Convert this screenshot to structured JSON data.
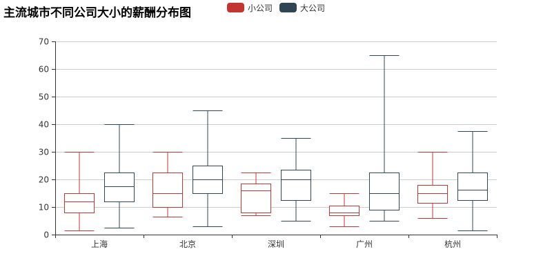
{
  "chart_data": {
    "type": "boxplot",
    "title": "主流城市不同公司大小的薪酬分布图",
    "categories": [
      "上海",
      "北京",
      "深圳",
      "广州",
      "杭州"
    ],
    "ylim": [
      0,
      70
    ],
    "yticks": [
      0,
      10,
      20,
      30,
      40,
      50,
      60,
      70
    ],
    "grid": true,
    "legend_position": "top",
    "series": [
      {
        "name": "小公司",
        "color": "#c23531",
        "values": [
          {
            "min": 1.5,
            "q1": 8,
            "median": 12,
            "q3": 15,
            "max": 30
          },
          {
            "min": 6.5,
            "q1": 10,
            "median": 15,
            "q3": 22.5,
            "max": 30
          },
          {
            "min": 7,
            "q1": 8,
            "median": 16,
            "q3": 18.5,
            "max": 22.5
          },
          {
            "min": 3,
            "q1": 7,
            "median": 8,
            "q3": 10.5,
            "max": 15
          },
          {
            "min": 6,
            "q1": 11.5,
            "median": 15,
            "q3": 18,
            "max": 30
          }
        ]
      },
      {
        "name": "大公司",
        "color": "#2f4554",
        "values": [
          {
            "min": 2.5,
            "q1": 12,
            "median": 17.5,
            "q3": 22.5,
            "max": 40
          },
          {
            "min": 3,
            "q1": 15,
            "median": 20,
            "q3": 25,
            "max": 45
          },
          {
            "min": 5,
            "q1": 12.5,
            "median": 20,
            "q3": 23.5,
            "max": 35
          },
          {
            "min": 5,
            "q1": 9,
            "median": 15,
            "q3": 22.5,
            "max": 65
          },
          {
            "min": 1.5,
            "q1": 12.5,
            "median": 16.25,
            "q3": 22.5,
            "max": 37.5
          }
        ]
      }
    ]
  }
}
